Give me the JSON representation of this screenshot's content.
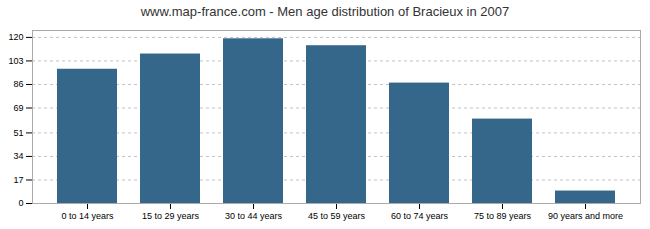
{
  "chart_data": {
    "type": "bar",
    "title": "www.map-france.com - Men age distribution of Bracieux in 2007",
    "categories": [
      "0 to 14 years",
      "15 to 29 years",
      "30 to 44 years",
      "45 to 59 years",
      "60 to 74 years",
      "75 to 89 years",
      "90 years and more"
    ],
    "values": [
      97,
      108,
      119,
      114,
      87,
      61,
      9
    ],
    "color": "#35678a",
    "ylim": [
      0,
      125
    ],
    "yticks": [
      0,
      17,
      34,
      51,
      69,
      86,
      103,
      120
    ],
    "grid": true
  }
}
